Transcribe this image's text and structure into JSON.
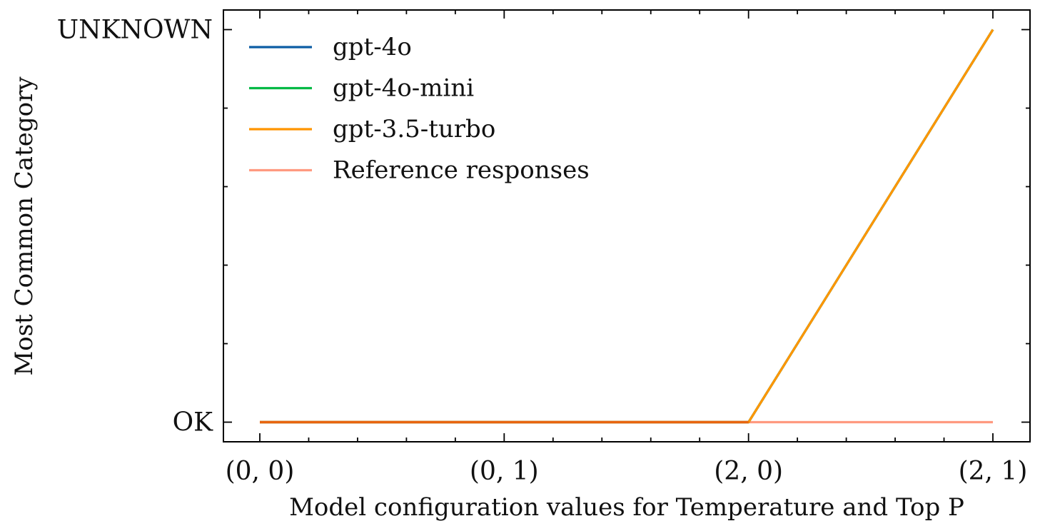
{
  "chart_data": {
    "type": "line",
    "title": "",
    "xlabel": "Model configuration values for Temperature and Top P",
    "ylabel": "Most Common Category",
    "categories": [
      "(0, 0)",
      "(0, 1)",
      "(2, 0)",
      "(2, 1)"
    ],
    "y_categories": [
      "OK",
      "UNKNOWN"
    ],
    "series": [
      {
        "name": "gpt-4o",
        "color": "#0C5DA5",
        "values": [
          "OK",
          "OK",
          "OK",
          "UNKNOWN"
        ]
      },
      {
        "name": "gpt-4o-mini",
        "color": "#00B945",
        "values": [
          "OK",
          "OK",
          "OK",
          "UNKNOWN"
        ]
      },
      {
        "name": "gpt-3.5-turbo",
        "color": "#FF9500",
        "values": [
          "OK",
          "OK",
          "OK",
          "UNKNOWN"
        ]
      },
      {
        "name": "Reference responses",
        "color": "#FF9A80",
        "values": [
          "OK",
          "OK",
          "OK",
          "OK"
        ]
      }
    ],
    "legend_position": "top-left",
    "grid": false
  }
}
